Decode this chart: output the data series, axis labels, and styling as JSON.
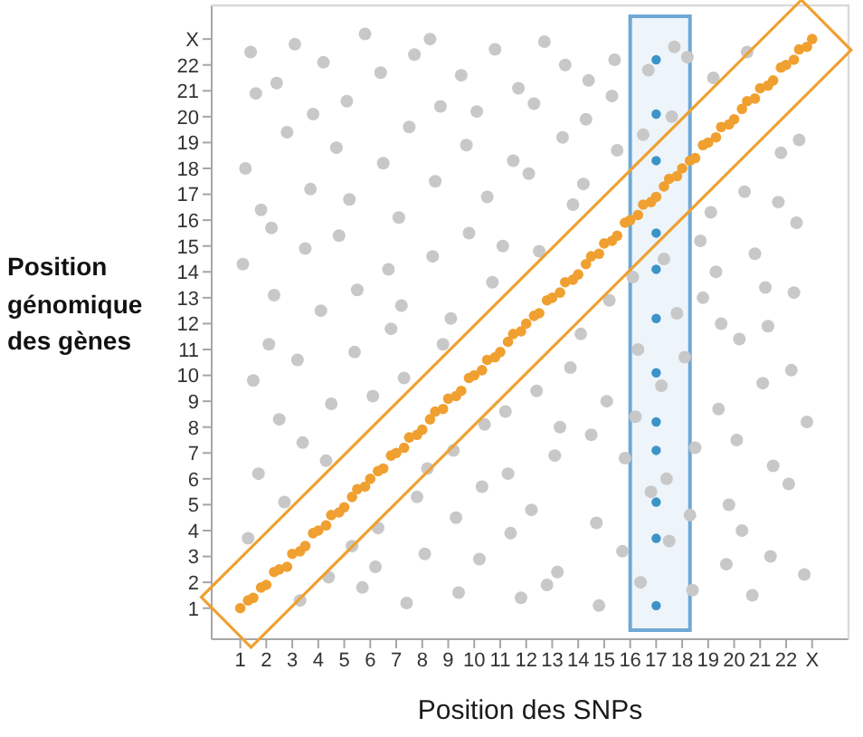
{
  "chart_data": {
    "type": "scatter",
    "xlabel": "Position des SNPs",
    "ylabel": "Position génomique des gènes",
    "marker": "circle",
    "xlim": [
      -0.1,
      24.4
    ],
    "ylim": [
      -0.2,
      24.3
    ],
    "xticks": [
      1,
      2,
      3,
      4,
      5,
      6,
      7,
      8,
      9,
      10,
      11,
      12,
      13,
      14,
      15,
      16,
      17,
      18,
      19,
      20,
      21,
      22,
      {
        "value": 23,
        "label": "X"
      }
    ],
    "yticks": [
      1,
      2,
      3,
      4,
      5,
      6,
      7,
      8,
      9,
      10,
      11,
      12,
      13,
      14,
      15,
      16,
      17,
      18,
      19,
      20,
      21,
      22,
      {
        "value": 23,
        "label": "X"
      }
    ],
    "bands": [
      {
        "axis": "x",
        "from": 16.0,
        "to": 18.3,
        "color": "#6fa8d6"
      }
    ],
    "series": [
      {
        "color": "#c8c8c8",
        "x": [
          1.1,
          1.4,
          1.7,
          1.2,
          1.5,
          1.8,
          1.3,
          1.6,
          2.1,
          2.4,
          2.7,
          2.2,
          2.5,
          2.8,
          2.3,
          3.1,
          3.4,
          3.7,
          3.2,
          3.5,
          3.8,
          3.3,
          4.1,
          4.4,
          4.7,
          4.2,
          4.5,
          4.8,
          4.3,
          5.1,
          5.4,
          5.7,
          5.2,
          5.5,
          5.8,
          5.3,
          6.1,
          6.4,
          6.7,
          6.2,
          6.5,
          6.8,
          6.3,
          7.1,
          7.4,
          7.7,
          7.2,
          7.5,
          7.8,
          7.3,
          8.1,
          8.4,
          8.7,
          8.2,
          8.5,
          8.8,
          8.3,
          9.1,
          9.4,
          9.7,
          9.2,
          9.5,
          9.8,
          9.3,
          10.1,
          10.4,
          10.7,
          10.2,
          10.5,
          10.8,
          10.3,
          11.1,
          11.4,
          11.7,
          11.2,
          11.5,
          11.8,
          11.3,
          12.1,
          12.4,
          12.7,
          12.2,
          12.5,
          12.8,
          12.3,
          13.1,
          13.4,
          13.7,
          13.2,
          13.5,
          13.8,
          13.3,
          14.1,
          14.4,
          14.7,
          14.2,
          14.5,
          14.8,
          14.3,
          15.1,
          15.4,
          15.7,
          15.2,
          15.5,
          15.8,
          15.3,
          16.1,
          16.4,
          16.7,
          16.2,
          16.5,
          16.8,
          16.3,
          17.3,
          17.5,
          17.7,
          17.2,
          17.6,
          17.8,
          17.4,
          18.1,
          18.4,
          18.7,
          18.2,
          18.5,
          18.8,
          18.3,
          19.1,
          19.4,
          19.7,
          19.2,
          19.5,
          19.8,
          19.3,
          20.1,
          20.4,
          20.7,
          20.2,
          20.5,
          20.8,
          20.3,
          21.1,
          21.4,
          21.7,
          21.2,
          21.5,
          21.8,
          21.3,
          22.1,
          22.4,
          22.7,
          22.2,
          22.5,
          22.8,
          22.3
        ],
        "values": [
          14.3,
          22.5,
          6.2,
          18.0,
          9.8,
          16.4,
          3.7,
          20.9,
          11.2,
          21.3,
          5.1,
          15.7,
          8.3,
          19.4,
          13.1,
          22.8,
          7.4,
          17.2,
          10.6,
          14.9,
          20.1,
          1.3,
          12.5,
          2.2,
          18.8,
          22.1,
          8.9,
          15.4,
          6.7,
          20.6,
          10.9,
          1.8,
          16.8,
          13.3,
          23.2,
          3.4,
          9.2,
          21.7,
          14.1,
          2.6,
          18.2,
          11.8,
          4.1,
          16.1,
          1.2,
          22.4,
          12.7,
          19.6,
          5.3,
          9.9,
          3.1,
          14.6,
          20.4,
          6.4,
          17.5,
          11.2,
          23.0,
          12.2,
          1.6,
          18.9,
          7.1,
          21.6,
          15.5,
          4.5,
          20.2,
          8.1,
          13.6,
          2.9,
          16.9,
          22.6,
          5.7,
          15.0,
          3.9,
          21.1,
          8.6,
          18.3,
          1.4,
          6.2,
          17.8,
          9.4,
          22.9,
          4.8,
          14.8,
          1.9,
          20.5,
          6.9,
          19.2,
          10.3,
          2.4,
          22.0,
          16.6,
          8.0,
          11.6,
          21.4,
          4.3,
          17.4,
          7.7,
          1.1,
          19.9,
          9.0,
          22.2,
          3.2,
          12.9,
          18.7,
          6.8,
          20.8,
          13.8,
          2.0,
          21.8,
          8.4,
          19.3,
          5.5,
          11.0,
          14.5,
          3.6,
          22.7,
          9.6,
          20.0,
          12.4,
          6.0,
          10.7,
          1.7,
          15.2,
          22.3,
          7.2,
          13.0,
          4.6,
          16.3,
          8.7,
          2.7,
          21.5,
          12.0,
          5.0,
          14.0,
          7.5,
          17.1,
          1.5,
          11.4,
          22.5,
          14.7,
          4.0,
          9.7,
          3.0,
          16.7,
          13.4,
          6.5,
          18.6,
          11.9,
          5.8,
          15.9,
          2.3,
          10.2,
          19.1,
          8.2,
          13.2
        ]
      },
      {
        "color": "#f0a030",
        "x": [
          1.0,
          1.3,
          1.5,
          1.8,
          2.0,
          2.3,
          2.5,
          2.8,
          3.0,
          3.3,
          3.5,
          3.8,
          4.0,
          4.3,
          4.5,
          4.8,
          5.0,
          5.3,
          5.5,
          5.8,
          6.0,
          6.3,
          6.5,
          6.8,
          7.0,
          7.3,
          7.5,
          7.8,
          8.0,
          8.3,
          8.5,
          8.8,
          9.0,
          9.3,
          9.5,
          9.8,
          10.0,
          10.3,
          10.5,
          10.8,
          11.0,
          11.3,
          11.5,
          11.8,
          12.0,
          12.3,
          12.5,
          12.8,
          13.0,
          13.3,
          13.5,
          13.8,
          14.0,
          14.3,
          14.5,
          14.8,
          15.0,
          15.3,
          15.5,
          15.8,
          16.0,
          16.3,
          16.5,
          16.8,
          17.0,
          17.3,
          17.5,
          17.8,
          18.0,
          18.3,
          18.5,
          18.8,
          19.0,
          19.3,
          19.5,
          19.8,
          20.0,
          20.3,
          20.5,
          20.8,
          21.0,
          21.3,
          21.5,
          21.8,
          22.0,
          22.3,
          22.5,
          22.8,
          23.0
        ],
        "values": [
          1.0,
          1.3,
          1.4,
          1.8,
          1.9,
          2.4,
          2.5,
          2.6,
          3.1,
          3.2,
          3.4,
          3.9,
          4.0,
          4.2,
          4.6,
          4.7,
          4.9,
          5.3,
          5.6,
          5.7,
          6.0,
          6.3,
          6.4,
          6.9,
          7.0,
          7.2,
          7.6,
          7.7,
          7.9,
          8.3,
          8.6,
          8.7,
          9.1,
          9.2,
          9.4,
          9.9,
          10.0,
          10.2,
          10.6,
          10.7,
          10.9,
          11.3,
          11.6,
          11.7,
          12.0,
          12.3,
          12.4,
          12.9,
          13.0,
          13.2,
          13.6,
          13.7,
          13.9,
          14.3,
          14.6,
          14.7,
          15.1,
          15.2,
          15.4,
          15.9,
          16.0,
          16.2,
          16.6,
          16.7,
          16.9,
          17.3,
          17.6,
          17.7,
          18.0,
          18.3,
          18.4,
          18.9,
          19.0,
          19.2,
          19.6,
          19.7,
          19.9,
          20.3,
          20.6,
          20.7,
          21.1,
          21.2,
          21.4,
          21.9,
          22.0,
          22.2,
          22.6,
          22.7,
          23.0
        ]
      },
      {
        "color": "#3b94c8",
        "x": [
          17,
          17,
          17,
          17,
          17,
          17,
          17,
          17,
          17,
          17,
          17,
          17
        ],
        "values": [
          22.2,
          20.1,
          18.3,
          15.5,
          14.1,
          12.2,
          10.1,
          8.2,
          7.1,
          5.1,
          3.7,
          1.1
        ]
      }
    ]
  }
}
